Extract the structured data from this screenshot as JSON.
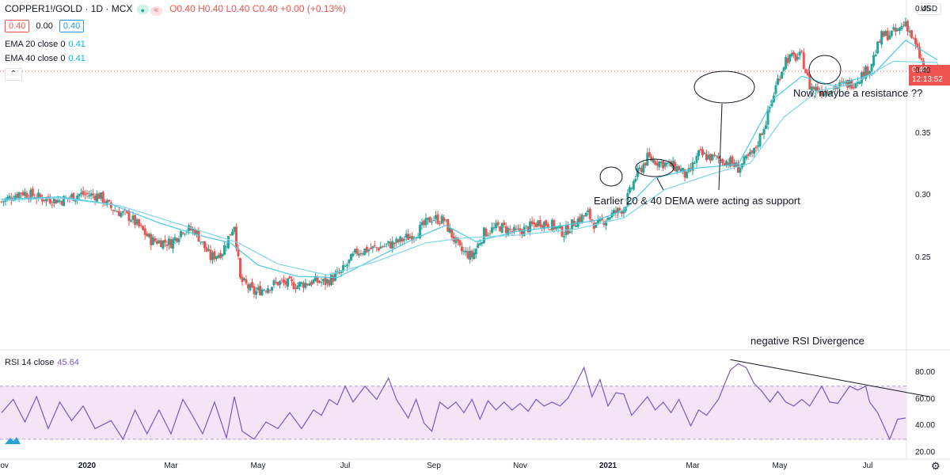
{
  "header": {
    "symbol": "COPPER1!/GOLD · 1D · MCX",
    "ohlc": "O0.40 H0.40 L0.40 C0.40 +0.00 (+0.13%)",
    "bid": "0.40",
    "spread": "0.00",
    "ask": "0.40",
    "ema20_label": "EMA 20 close 0",
    "ema20_value": "0.41",
    "ema40_label": "EMA 40 close 0",
    "ema40_value": "0.41",
    "collapse_glyph": "⌃",
    "currency": "USD"
  },
  "price_label": {
    "price": "0.40",
    "countdown": "12:13:52"
  },
  "rsi_header": {
    "label": "RSI 14 close",
    "value": "45.64"
  },
  "annotations": {
    "resistance": "Now, maybe a resistance ??",
    "support": "Earlier 20 & 40 DEMA were acting as support",
    "divergence": "negative RSI Divergence"
  },
  "colors": {
    "up": "#26a69a",
    "down": "#ef5350",
    "ema": "#4dc9e6",
    "rsi": "#7e57c2",
    "rsi_band": "#f3e5f5"
  },
  "chart_data": [
    {
      "type": "candlestick",
      "title": "COPPER1!/GOLD · 1D · MCX",
      "ylim": [
        0.21,
        0.455
      ],
      "yticks": [
        0.25,
        0.3,
        0.35,
        0.4,
        0.45
      ],
      "ytick_labels": [
        "0.25",
        "0.30",
        "0.35",
        "0.40",
        "0.45"
      ],
      "xticks": [
        {
          "label": "Nov",
          "bold": false
        },
        {
          "label": "2020",
          "bold": true
        },
        {
          "label": "Mar",
          "bold": false
        },
        {
          "label": "May",
          "bold": false
        },
        {
          "label": "Jul",
          "bold": false
        },
        {
          "label": "Sep",
          "bold": false
        },
        {
          "label": "Nov",
          "bold": false
        },
        {
          "label": "2021",
          "bold": true
        },
        {
          "label": "Mar",
          "bold": false
        },
        {
          "label": "May",
          "bold": false
        },
        {
          "label": "Jul",
          "bold": false
        }
      ],
      "close_path": [
        [
          0,
          0.295
        ],
        [
          10,
          0.303
        ],
        [
          20,
          0.298
        ],
        [
          30,
          0.296
        ],
        [
          40,
          0.301
        ],
        [
          50,
          0.3
        ],
        [
          56,
          0.29
        ],
        [
          66,
          0.282
        ],
        [
          76,
          0.264
        ],
        [
          86,
          0.262
        ],
        [
          92,
          0.273
        ],
        [
          98,
          0.272
        ],
        [
          106,
          0.25
        ],
        [
          112,
          0.255
        ],
        [
          118,
          0.277
        ],
        [
          121,
          0.232
        ],
        [
          128,
          0.222
        ],
        [
          140,
          0.23
        ],
        [
          150,
          0.228
        ],
        [
          158,
          0.231
        ],
        [
          164,
          0.23
        ],
        [
          172,
          0.238
        ],
        [
          180,
          0.255
        ],
        [
          190,
          0.258
        ],
        [
          200,
          0.262
        ],
        [
          210,
          0.27
        ],
        [
          218,
          0.282
        ],
        [
          224,
          0.28
        ],
        [
          232,
          0.256
        ],
        [
          238,
          0.251
        ],
        [
          244,
          0.27
        ],
        [
          252,
          0.275
        ],
        [
          260,
          0.27
        ],
        [
          266,
          0.274
        ],
        [
          272,
          0.279
        ],
        [
          278,
          0.276
        ],
        [
          284,
          0.27
        ],
        [
          290,
          0.28
        ],
        [
          296,
          0.285
        ],
        [
          300,
          0.275
        ],
        [
          306,
          0.283
        ],
        [
          314,
          0.29
        ],
        [
          320,
          0.315
        ],
        [
          326,
          0.33
        ],
        [
          334,
          0.326
        ],
        [
          342,
          0.322
        ],
        [
          346,
          0.315
        ],
        [
          352,
          0.333
        ],
        [
          360,
          0.33
        ],
        [
          368,
          0.327
        ],
        [
          372,
          0.322
        ],
        [
          380,
          0.335
        ],
        [
          386,
          0.36
        ],
        [
          392,
          0.393
        ],
        [
          396,
          0.41
        ],
        [
          404,
          0.412
        ],
        [
          408,
          0.388
        ],
        [
          414,
          0.384
        ],
        [
          420,
          0.387
        ],
        [
          430,
          0.391
        ],
        [
          438,
          0.403
        ],
        [
          444,
          0.428
        ],
        [
          452,
          0.432
        ],
        [
          456,
          0.44
        ],
        [
          464,
          0.408
        ],
        [
          466,
          0.395
        ],
        [
          472,
          0.4
        ]
      ],
      "ema20": [
        [
          0,
          0.297
        ],
        [
          30,
          0.299
        ],
        [
          56,
          0.293
        ],
        [
          80,
          0.278
        ],
        [
          100,
          0.268
        ],
        [
          116,
          0.262
        ],
        [
          130,
          0.244
        ],
        [
          150,
          0.235
        ],
        [
          170,
          0.234
        ],
        [
          190,
          0.25
        ],
        [
          210,
          0.266
        ],
        [
          225,
          0.276
        ],
        [
          240,
          0.263
        ],
        [
          260,
          0.271
        ],
        [
          280,
          0.275
        ],
        [
          300,
          0.28
        ],
        [
          314,
          0.288
        ],
        [
          330,
          0.314
        ],
        [
          350,
          0.322
        ],
        [
          372,
          0.325
        ],
        [
          390,
          0.378
        ],
        [
          404,
          0.396
        ],
        [
          420,
          0.388
        ],
        [
          440,
          0.398
        ],
        [
          456,
          0.425
        ],
        [
          472,
          0.409
        ]
      ],
      "ema40": [
        [
          0,
          0.296
        ],
        [
          30,
          0.298
        ],
        [
          60,
          0.292
        ],
        [
          90,
          0.277
        ],
        [
          120,
          0.262
        ],
        [
          140,
          0.245
        ],
        [
          165,
          0.236
        ],
        [
          190,
          0.247
        ],
        [
          215,
          0.262
        ],
        [
          235,
          0.266
        ],
        [
          260,
          0.268
        ],
        [
          290,
          0.273
        ],
        [
          314,
          0.282
        ],
        [
          335,
          0.305
        ],
        [
          360,
          0.318
        ],
        [
          378,
          0.326
        ],
        [
          395,
          0.363
        ],
        [
          412,
          0.384
        ],
        [
          430,
          0.39
        ],
        [
          450,
          0.408
        ],
        [
          472,
          0.407
        ]
      ]
    },
    {
      "type": "line",
      "title": "RSI 14 close",
      "ylim": [
        20,
        90
      ],
      "yticks": [
        20,
        40,
        60,
        80
      ],
      "ytick_labels": [
        "20.00",
        "40.00",
        "60.00",
        "80.00"
      ],
      "band": [
        30,
        70
      ],
      "last_value": 45.64,
      "series": [
        {
          "values": [
            [
              0,
              50
            ],
            [
              6,
              60
            ],
            [
              12,
              43
            ],
            [
              18,
              62
            ],
            [
              24,
              38
            ],
            [
              30,
              58
            ],
            [
              36,
              44
            ],
            [
              42,
              55
            ],
            [
              48,
              38
            ],
            [
              56,
              44
            ],
            [
              62,
              30
            ],
            [
              68,
              52
            ],
            [
              74,
              34
            ],
            [
              80,
              52
            ],
            [
              86,
              34
            ],
            [
              92,
              60
            ],
            [
              96,
              50
            ],
            [
              102,
              34
            ],
            [
              108,
              58
            ],
            [
              114,
              31
            ],
            [
              118,
              62
            ],
            [
              122,
              36
            ],
            [
              128,
              30
            ],
            [
              134,
              43
            ],
            [
              140,
              38
            ],
            [
              146,
              50
            ],
            [
              152,
              38
            ],
            [
              158,
              52
            ],
            [
              162,
              48
            ],
            [
              166,
              60
            ],
            [
              170,
              56
            ],
            [
              174,
              70
            ],
            [
              178,
              58
            ],
            [
              184,
              70
            ],
            [
              190,
              60
            ],
            [
              196,
              76
            ],
            [
              200,
              60
            ],
            [
              206,
              46
            ],
            [
              210,
              60
            ],
            [
              214,
              42
            ],
            [
              218,
              36
            ],
            [
              222,
              58
            ],
            [
              226,
              53
            ],
            [
              230,
              58
            ],
            [
              234,
              50
            ],
            [
              238,
              60
            ],
            [
              242,
              45
            ],
            [
              246,
              59
            ],
            [
              250,
              52
            ],
            [
              254,
              58
            ],
            [
              258,
              52
            ],
            [
              262,
              57
            ],
            [
              266,
              51
            ],
            [
              270,
              60
            ],
            [
              274,
              55
            ],
            [
              278,
              58
            ],
            [
              282,
              55
            ],
            [
              286,
              61
            ],
            [
              290,
              72
            ],
            [
              294,
              84
            ],
            [
              298,
              62
            ],
            [
              302,
              75
            ],
            [
              306,
              55
            ],
            [
              310,
              65
            ],
            [
              314,
              64
            ],
            [
              318,
              48
            ],
            [
              322,
              55
            ],
            [
              326,
              62
            ],
            [
              330,
              52
            ],
            [
              334,
              58
            ],
            [
              338,
              50
            ],
            [
              342,
              60
            ],
            [
              348,
              40
            ],
            [
              352,
              52
            ],
            [
              356,
              48
            ],
            [
              362,
              60
            ],
            [
              368,
              82
            ],
            [
              372,
              87
            ],
            [
              376,
              84
            ],
            [
              380,
              72
            ],
            [
              384,
              66
            ],
            [
              388,
              58
            ],
            [
              392,
              66
            ],
            [
              396,
              58
            ],
            [
              400,
              55
            ],
            [
              404,
              60
            ],
            [
              408,
              55
            ],
            [
              414,
              70
            ],
            [
              418,
              58
            ],
            [
              422,
              57
            ],
            [
              428,
              70
            ],
            [
              432,
              67
            ],
            [
              436,
              70
            ],
            [
              438,
              58
            ],
            [
              442,
              50
            ],
            [
              448,
              30
            ],
            [
              452,
              45
            ],
            [
              456,
              46
            ]
          ]
        }
      ],
      "trendline": [
        [
          368,
          90
        ],
        [
          468,
          62
        ]
      ]
    }
  ]
}
